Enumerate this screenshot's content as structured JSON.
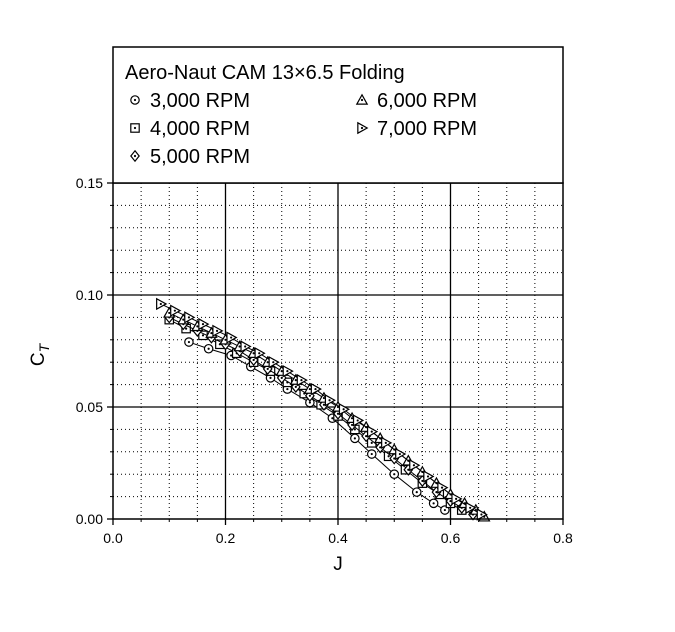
{
  "chart_data": {
    "type": "scatter",
    "title": "Aero-Naut CAM 13×6.5 Folding",
    "xlabel": "J",
    "ylabel_main": "C",
    "ylabel_sub": "T",
    "xlim": [
      0.0,
      0.8
    ],
    "ylim": [
      0.0,
      0.15
    ],
    "x_ticks": [
      "0.0",
      "0.2",
      "0.4",
      "0.6",
      "0.8"
    ],
    "y_ticks": [
      "0.00",
      "0.05",
      "0.10",
      "0.15"
    ],
    "grid": "major solid, minor dotted",
    "legend_position": "top (inside frame above plot)",
    "series": [
      {
        "name": "3,000 RPM",
        "marker": "circle-dot",
        "x": [
          0.135,
          0.17,
          0.21,
          0.245,
          0.28,
          0.31,
          0.35,
          0.39,
          0.43,
          0.46,
          0.5,
          0.54,
          0.57,
          0.59
        ],
        "y": [
          0.079,
          0.076,
          0.073,
          0.068,
          0.063,
          0.058,
          0.052,
          0.045,
          0.036,
          0.029,
          0.02,
          0.012,
          0.007,
          0.004
        ]
      },
      {
        "name": "4,000 RPM",
        "marker": "square-dot",
        "x": [
          0.1,
          0.13,
          0.16,
          0.19,
          0.22,
          0.25,
          0.28,
          0.31,
          0.34,
          0.37,
          0.4,
          0.43,
          0.46,
          0.49,
          0.52,
          0.55,
          0.58,
          0.6,
          0.62
        ],
        "y": [
          0.089,
          0.085,
          0.082,
          0.078,
          0.074,
          0.07,
          0.066,
          0.061,
          0.056,
          0.051,
          0.046,
          0.04,
          0.034,
          0.028,
          0.022,
          0.016,
          0.011,
          0.007,
          0.004
        ]
      },
      {
        "name": "5,000 RPM",
        "marker": "diamond-dot",
        "x": [
          0.1,
          0.125,
          0.15,
          0.175,
          0.2,
          0.225,
          0.25,
          0.275,
          0.3,
          0.325,
          0.35,
          0.375,
          0.4,
          0.425,
          0.45,
          0.475,
          0.5,
          0.525,
          0.55,
          0.575,
          0.6,
          0.62,
          0.64
        ],
        "y": [
          0.09,
          0.087,
          0.084,
          0.081,
          0.078,
          0.075,
          0.071,
          0.067,
          0.063,
          0.059,
          0.055,
          0.051,
          0.047,
          0.042,
          0.037,
          0.032,
          0.027,
          0.022,
          0.017,
          0.012,
          0.008,
          0.005,
          0.002
        ]
      },
      {
        "name": "6,000 RPM",
        "marker": "triangle-up-dot",
        "x": [
          0.1,
          0.125,
          0.15,
          0.175,
          0.2,
          0.225,
          0.25,
          0.275,
          0.3,
          0.325,
          0.35,
          0.375,
          0.4,
          0.425,
          0.45,
          0.475,
          0.5,
          0.525,
          0.55,
          0.575,
          0.6,
          0.625,
          0.645,
          0.66
        ],
        "y": [
          0.092,
          0.089,
          0.086,
          0.083,
          0.08,
          0.077,
          0.074,
          0.07,
          0.066,
          0.062,
          0.058,
          0.054,
          0.05,
          0.045,
          0.041,
          0.036,
          0.031,
          0.026,
          0.021,
          0.016,
          0.011,
          0.007,
          0.004,
          0.001
        ]
      },
      {
        "name": "7,000 RPM",
        "marker": "triangle-right-dot",
        "x": [
          0.085,
          0.11,
          0.135,
          0.16,
          0.185,
          0.21,
          0.235,
          0.26,
          0.285,
          0.31,
          0.335,
          0.36,
          0.385,
          0.41,
          0.435,
          0.46,
          0.485,
          0.51,
          0.535,
          0.56,
          0.585,
          0.61,
          0.635,
          0.655
        ],
        "y": [
          0.096,
          0.093,
          0.09,
          0.087,
          0.084,
          0.081,
          0.077,
          0.074,
          0.07,
          0.066,
          0.062,
          0.058,
          0.053,
          0.049,
          0.044,
          0.039,
          0.034,
          0.029,
          0.024,
          0.019,
          0.014,
          0.009,
          0.005,
          0.002
        ]
      }
    ]
  }
}
